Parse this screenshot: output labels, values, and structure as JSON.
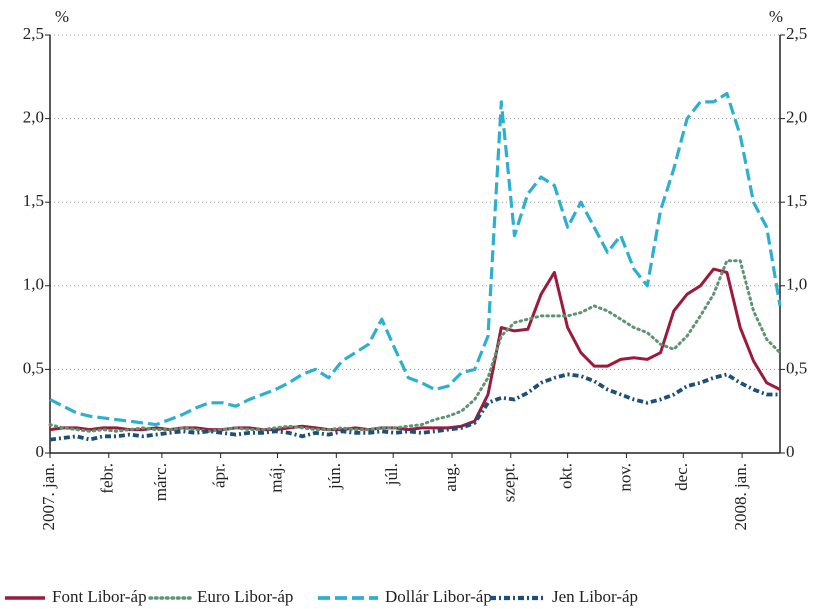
{
  "chart_data": {
    "type": "line",
    "y_label": "%",
    "y2_label": "%",
    "x": [
      0,
      7,
      14,
      21,
      28,
      35,
      42,
      49,
      56,
      63,
      70,
      77,
      84,
      91,
      98,
      105,
      112,
      119,
      126,
      133,
      140,
      147,
      154,
      161,
      168,
      175,
      182,
      189,
      196,
      203,
      210,
      217,
      224,
      231,
      238,
      245,
      252,
      259,
      266,
      273,
      280,
      287,
      294,
      301,
      308,
      315,
      322,
      329,
      336,
      343,
      350,
      357,
      364,
      371,
      378,
      385
    ],
    "xlim": [
      0,
      385
    ],
    "xticks": [
      {
        "value": 0,
        "label": "2007. jan."
      },
      {
        "value": 31,
        "label": "febr."
      },
      {
        "value": 59,
        "label": "márc."
      },
      {
        "value": 90,
        "label": "ápr."
      },
      {
        "value": 120,
        "label": "máj."
      },
      {
        "value": 151,
        "label": "jún."
      },
      {
        "value": 181,
        "label": "júl."
      },
      {
        "value": 212,
        "label": "aug."
      },
      {
        "value": 243,
        "label": "szept."
      },
      {
        "value": 273,
        "label": "okt."
      },
      {
        "value": 304,
        "label": "nov."
      },
      {
        "value": 334,
        "label": "dec."
      },
      {
        "value": 365,
        "label": "2008. jan."
      }
    ],
    "ylim": [
      0,
      2.5
    ],
    "yticks": [
      0,
      {
        "value": 0.5,
        "label": "0,5"
      },
      {
        "value": 1.0,
        "label": "1,0"
      },
      {
        "value": 1.5,
        "label": "1,5"
      },
      {
        "value": 2.0,
        "label": "2,0"
      },
      {
        "value": 2.5,
        "label": "2,5"
      }
    ],
    "y2lim": [
      0,
      2.5
    ],
    "y2ticks": [
      0,
      {
        "value": 0.5,
        "label": "0,5"
      },
      {
        "value": 1.0,
        "label": "1,0"
      },
      {
        "value": 1.5,
        "label": "1,5"
      },
      {
        "value": 2.0,
        "label": "2,0"
      },
      {
        "value": 2.5,
        "label": "2,5"
      }
    ],
    "grid": true,
    "legend": "bottom",
    "series": [
      {
        "name": "Font Libor-áp",
        "color": "#9b1b3c",
        "dash": "solid",
        "values": [
          0.14,
          0.15,
          0.15,
          0.14,
          0.15,
          0.15,
          0.14,
          0.14,
          0.15,
          0.14,
          0.15,
          0.15,
          0.14,
          0.14,
          0.15,
          0.15,
          0.14,
          0.14,
          0.15,
          0.16,
          0.15,
          0.14,
          0.14,
          0.15,
          0.14,
          0.15,
          0.15,
          0.14,
          0.15,
          0.15,
          0.15,
          0.16,
          0.19,
          0.35,
          0.75,
          0.73,
          0.74,
          0.95,
          1.08,
          0.75,
          0.6,
          0.52,
          0.52,
          0.56,
          0.57,
          0.56,
          0.6,
          0.85,
          0.95,
          1.0,
          1.1,
          1.08,
          0.75,
          0.55,
          0.42,
          0.38
        ]
      },
      {
        "name": "Euro Libor-áp",
        "color": "#5e9473",
        "dash": "dotted",
        "values": [
          0.17,
          0.15,
          0.14,
          0.13,
          0.14,
          0.13,
          0.14,
          0.15,
          0.14,
          0.14,
          0.15,
          0.14,
          0.13,
          0.14,
          0.15,
          0.14,
          0.14,
          0.15,
          0.16,
          0.15,
          0.14,
          0.14,
          0.15,
          0.14,
          0.14,
          0.15,
          0.15,
          0.16,
          0.17,
          0.2,
          0.22,
          0.25,
          0.32,
          0.45,
          0.7,
          0.78,
          0.8,
          0.82,
          0.82,
          0.82,
          0.84,
          0.88,
          0.85,
          0.8,
          0.75,
          0.72,
          0.65,
          0.62,
          0.7,
          0.82,
          0.95,
          1.15,
          1.15,
          0.85,
          0.68,
          0.6
        ]
      },
      {
        "name": "Dollár Libor-áp",
        "color": "#2db0cf",
        "dash": "dashed",
        "values": [
          0.32,
          0.28,
          0.24,
          0.22,
          0.21,
          0.2,
          0.19,
          0.18,
          0.17,
          0.2,
          0.23,
          0.27,
          0.3,
          0.3,
          0.28,
          0.32,
          0.35,
          0.38,
          0.42,
          0.47,
          0.5,
          0.45,
          0.55,
          0.6,
          0.65,
          0.8,
          0.62,
          0.45,
          0.42,
          0.38,
          0.4,
          0.48,
          0.5,
          0.7,
          2.1,
          1.3,
          1.55,
          1.65,
          1.6,
          1.35,
          1.5,
          1.35,
          1.2,
          1.3,
          1.1,
          1.0,
          1.45,
          1.7,
          2.0,
          2.1,
          2.1,
          2.15,
          1.9,
          1.5,
          1.35,
          0.88
        ]
      },
      {
        "name": "Jen Libor-áp",
        "color": "#1d4f79",
        "dash": "dash-dot",
        "values": [
          0.08,
          0.09,
          0.1,
          0.08,
          0.1,
          0.1,
          0.11,
          0.1,
          0.11,
          0.12,
          0.13,
          0.12,
          0.13,
          0.12,
          0.11,
          0.12,
          0.12,
          0.13,
          0.12,
          0.1,
          0.12,
          0.11,
          0.13,
          0.12,
          0.12,
          0.13,
          0.12,
          0.13,
          0.12,
          0.13,
          0.14,
          0.15,
          0.18,
          0.3,
          0.33,
          0.32,
          0.36,
          0.42,
          0.45,
          0.47,
          0.46,
          0.43,
          0.38,
          0.35,
          0.32,
          0.3,
          0.32,
          0.35,
          0.4,
          0.42,
          0.45,
          0.47,
          0.42,
          0.38,
          0.35,
          0.35
        ]
      }
    ]
  }
}
